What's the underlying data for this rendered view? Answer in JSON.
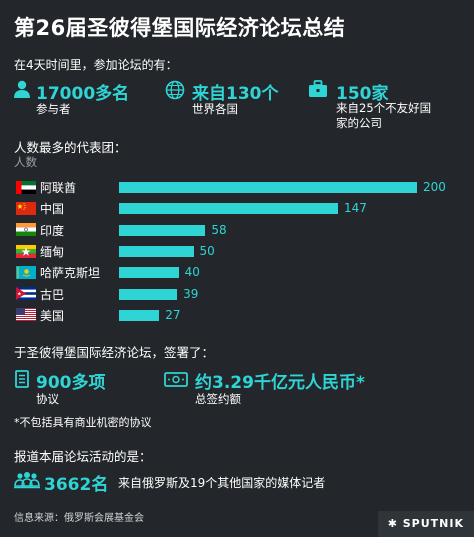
{
  "title": "第26届圣彼得堡国际经济论坛总结",
  "intro": "在4天时间里，参加论坛的有：",
  "stats": [
    {
      "value": "17000多名",
      "label": "参与者",
      "icon": "person-icon"
    },
    {
      "value": "来自130个",
      "label": "世界各国",
      "icon": "globe-icon"
    },
    {
      "value": "150家",
      "label": "来自25个不友好国\n家的公司",
      "icon": "briefcase-icon"
    }
  ],
  "delegations_heading": "人数最多的代表团：",
  "delegations_unit": "人数",
  "chart_data": {
    "type": "bar",
    "orientation": "horizontal",
    "categories": [
      "阿联酋",
      "中国",
      "印度",
      "缅甸",
      "哈萨克斯坦",
      "古巴",
      "美国"
    ],
    "values": [
      200,
      147,
      58,
      50,
      40,
      39,
      27
    ],
    "ylabel": "人数",
    "xlim": [
      0,
      200
    ],
    "bar_color": "#2fd4d4",
    "grid": false
  },
  "flag_colors": {
    "uae": [
      "#00732f",
      "#ffffff",
      "#000000",
      "#ff0000"
    ],
    "china": [
      "#de2910",
      "#ffde00"
    ],
    "india": [
      "#ff9933",
      "#ffffff",
      "#138808"
    ],
    "myanmar": [
      "#fecb00",
      "#34b233",
      "#ea2839"
    ],
    "kazakhstan": [
      "#00afca",
      "#fec50c"
    ],
    "cuba": [
      "#002a8f",
      "#ffffff",
      "#cf142b"
    ],
    "usa": [
      "#b22234",
      "#ffffff",
      "#3c3b6e"
    ]
  },
  "signed_heading": "于圣彼得堡国际经济论坛，签署了：",
  "signed": [
    {
      "value": "900多项",
      "label": "协议",
      "icon": "document-icon"
    },
    {
      "value": "约3.29千亿元人民币*",
      "label": "总签约额",
      "icon": "banknote-icon"
    }
  ],
  "signed_note": "*不包括具有商业机密的协议",
  "media_heading": "报道本届论坛活动的是：",
  "media": {
    "value": "3662名",
    "label": "来自俄罗斯及19个其他国家的媒体记者",
    "icon": "journalists-icon"
  },
  "footer": "信息来源：俄罗斯会展基金会",
  "logo": "SPUTNIK",
  "accent": "#2fd4d4",
  "background": "#23272b"
}
